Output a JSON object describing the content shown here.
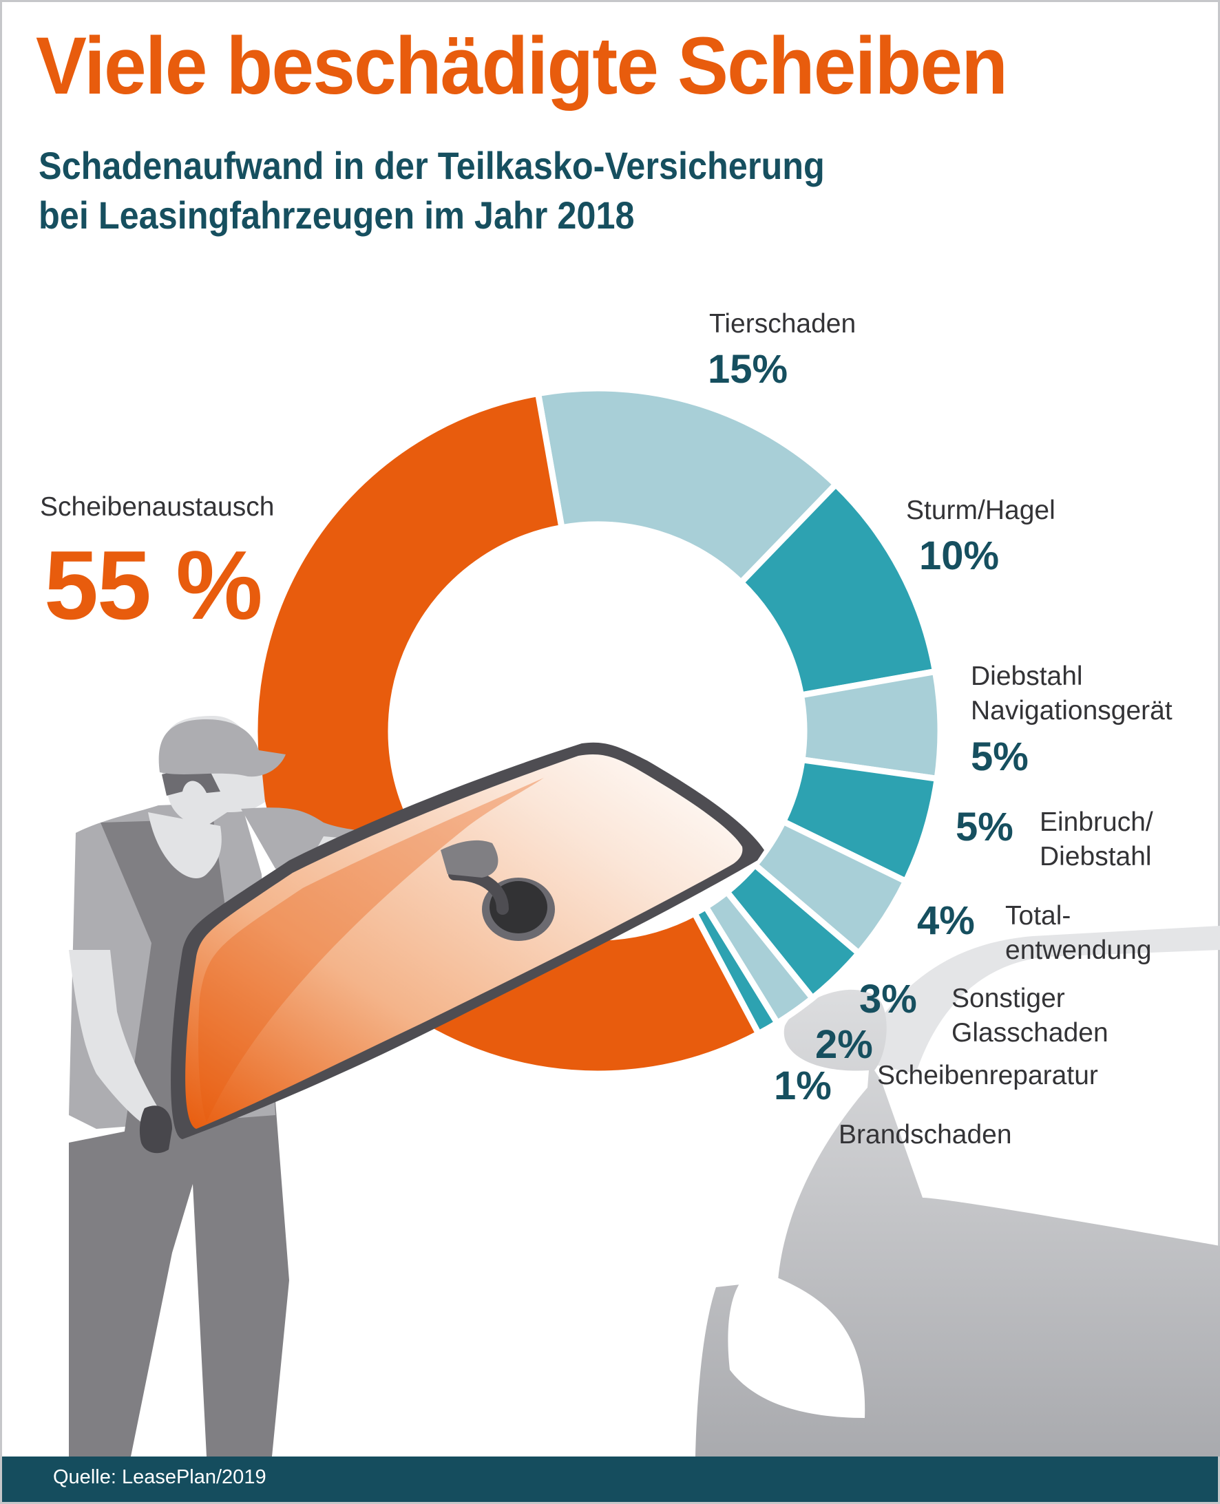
{
  "header": {
    "title": "Viele beschädigte Scheiben",
    "subtitle_line1": "Schadenaufwand in der Teilkasko-Versicherung",
    "subtitle_line2": "bei Leasingfahrzeugen im Jahr 2018"
  },
  "footer": {
    "source": "Quelle: LeasePlan/2019"
  },
  "colors": {
    "orange": "#e85c0d",
    "light_blue": "#a8cfd7",
    "teal": "#2da2b1",
    "dark_teal": "#164f5f",
    "label_gray": "#333336"
  },
  "chart_data": {
    "type": "pie",
    "variant": "donut",
    "title": "Viele beschädigte Scheiben",
    "subtitle": "Schadenaufwand in der Teilkasko-Versicherung bei Leasingfahrzeugen im Jahr 2018",
    "unit": "%",
    "start_angle_deg": -10,
    "direction": "clockwise",
    "slices": [
      {
        "label": "Tierschaden",
        "value": 15,
        "value_label": "15%",
        "color": "#a8cfd7"
      },
      {
        "label": "Sturm/Hagel",
        "value": 10,
        "value_label": "10%",
        "color": "#2da2b1"
      },
      {
        "label": "Diebstahl Navigationsgerät",
        "label_lines": [
          "Diebstahl",
          "Navigationsgerät"
        ],
        "value": 5,
        "value_label": "5%",
        "color": "#a8cfd7"
      },
      {
        "label": "Einbruch/Diebstahl",
        "label_lines": [
          "Einbruch/",
          "Diebstahl"
        ],
        "value": 5,
        "value_label": "5%",
        "color": "#2da2b1"
      },
      {
        "label": "Totalentwendung",
        "label_lines": [
          "Total-",
          "entwendung"
        ],
        "value": 4,
        "value_label": "4%",
        "color": "#a8cfd7"
      },
      {
        "label": "Sonstiger Glasschaden",
        "label_lines": [
          "Sonstiger",
          "Glasschaden"
        ],
        "value": 3,
        "value_label": "3%",
        "color": "#2da2b1"
      },
      {
        "label": "Scheibenreparatur",
        "value": 2,
        "value_label": "2%",
        "color": "#a8cfd7"
      },
      {
        "label": "Brandschaden",
        "value": 1,
        "value_label": "1%",
        "color": "#2da2b1"
      },
      {
        "label": "Scheibenaustausch",
        "value": 55,
        "value_label": "55 %",
        "color": "#e85c0d"
      }
    ],
    "source": "Quelle: LeasePlan/2019"
  }
}
